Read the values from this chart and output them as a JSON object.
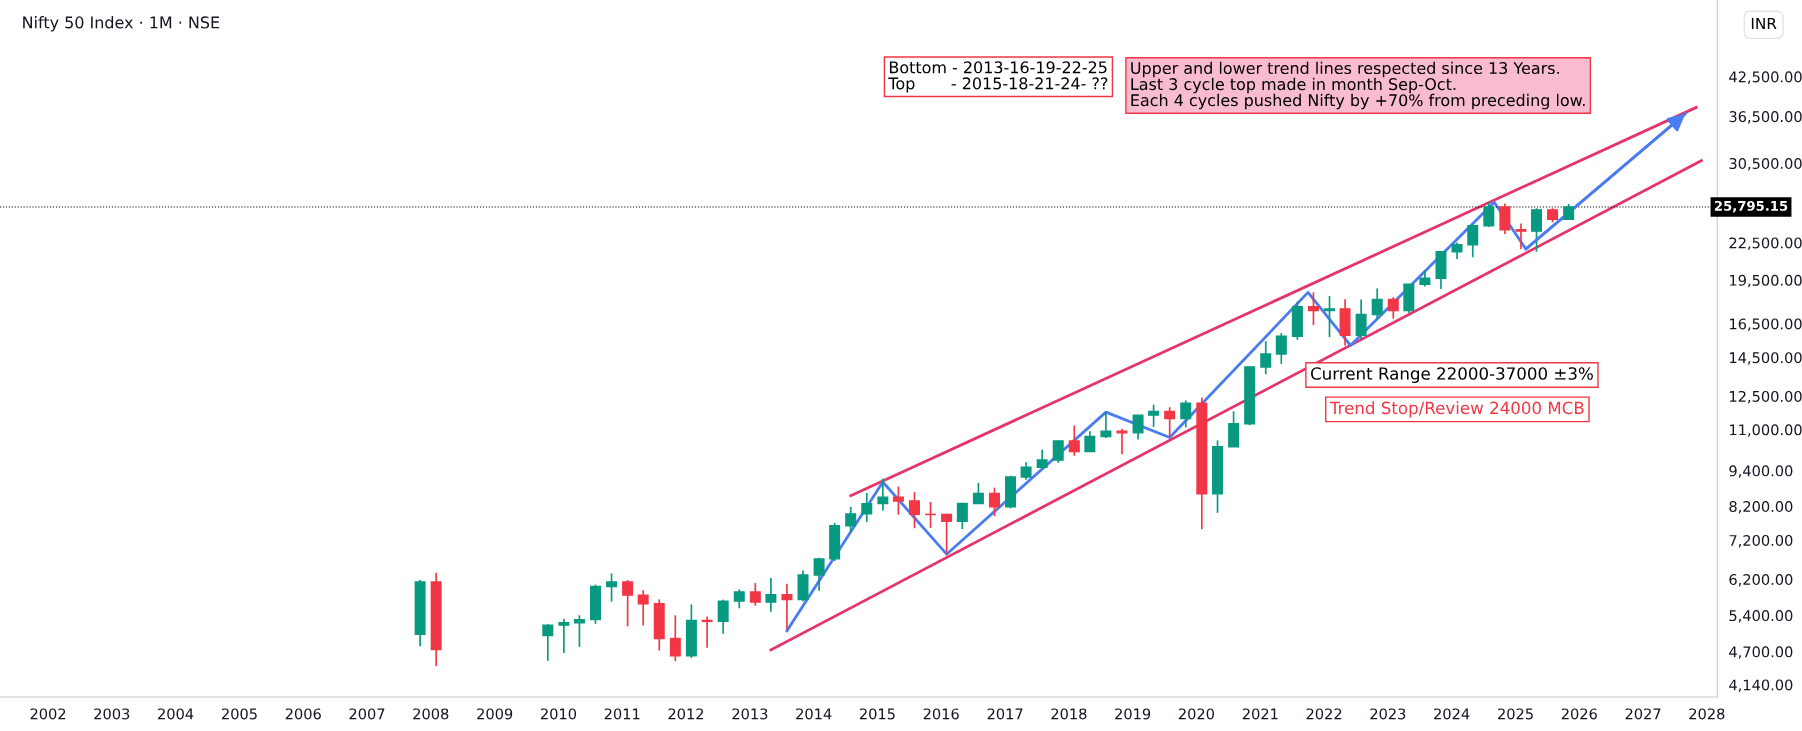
{
  "chart_data": {
    "type": "candlestick",
    "title": "Nifty 50 Index · 1M · NSE",
    "ylabel": "INR",
    "x": [
      "2007-11",
      "2008-02",
      "2009-11",
      "2010-02",
      "2010-05",
      "2010-08",
      "2010-11",
      "2011-02",
      "2011-05",
      "2011-08",
      "2011-11",
      "2012-02",
      "2012-05",
      "2012-08",
      "2012-11",
      "2013-02",
      "2013-05",
      "2013-08",
      "2013-11",
      "2014-02",
      "2014-05",
      "2014-08",
      "2014-11",
      "2015-02",
      "2015-05",
      "2015-08",
      "2015-11",
      "2016-02",
      "2016-05",
      "2016-08",
      "2016-11",
      "2017-02",
      "2017-05",
      "2017-08",
      "2017-11",
      "2018-02",
      "2018-05",
      "2018-08",
      "2018-11",
      "2019-02",
      "2019-05",
      "2019-08",
      "2019-11",
      "2020-02",
      "2020-05",
      "2020-08",
      "2020-11",
      "2021-02",
      "2021-05",
      "2021-08",
      "2021-11",
      "2022-02",
      "2022-05",
      "2022-08",
      "2022-11",
      "2023-02",
      "2023-05",
      "2023-08",
      "2023-11",
      "2024-02",
      "2024-05",
      "2024-08",
      "2024-11",
      "2025-02",
      "2025-05",
      "2025-08",
      "2025-11"
    ],
    "ohlc": [
      [
        5021,
        6185,
        4797,
        6139
      ],
      [
        6136,
        6357,
        4448,
        4735
      ],
      [
        4999,
        5221,
        4538,
        5201
      ],
      [
        5201,
        5330,
        4676,
        5249
      ],
      [
        5249,
        5400,
        4786,
        5313
      ],
      [
        5313,
        6074,
        5226,
        6030
      ],
      [
        6030,
        6339,
        5690,
        6135
      ],
      [
        6135,
        6181,
        5178,
        5834
      ],
      [
        5834,
        5944,
        5196,
        5647
      ],
      [
        5647,
        5740,
        4720,
        4943
      ],
      [
        4943,
        5400,
        4531,
        4624
      ],
      [
        4624,
        5630,
        4588,
        5296
      ],
      [
        5296,
        5379,
        4770,
        5279
      ],
      [
        5279,
        5735,
        5032,
        5703
      ],
      [
        5703,
        5965,
        5548,
        5905
      ],
      [
        5905,
        6112,
        5604,
        5683
      ],
      [
        5683,
        6229,
        5477,
        5842
      ],
      [
        5842,
        6093,
        5119,
        5735
      ],
      [
        5735,
        6415,
        5700,
        6304
      ],
      [
        6304,
        6731,
        5933,
        6704
      ],
      [
        6704,
        7700,
        6650,
        7611
      ],
      [
        7611,
        8180,
        7422,
        7965
      ],
      [
        7965,
        8627,
        7724,
        8283
      ],
      [
        8283,
        9119,
        8065,
        8491
      ],
      [
        8491,
        8845,
        7940,
        8369
      ],
      [
        8369,
        8655,
        7540,
        7949
      ],
      [
        7949,
        8336,
        7551,
        7946
      ],
      [
        7946,
        7972,
        6826,
        7738
      ],
      [
        7738,
        8308,
        7516,
        8288
      ],
      [
        8288,
        8968,
        8287,
        8611
      ],
      [
        8611,
        8806,
        7894,
        8186
      ],
      [
        8186,
        9218,
        8133,
        9174
      ],
      [
        9174,
        9709,
        9075,
        9521
      ],
      [
        9521,
        10179,
        9448,
        9789
      ],
      [
        9789,
        10553,
        9688,
        10531
      ],
      [
        10531,
        11172,
        9952,
        10114
      ],
      [
        10114,
        10930,
        10111,
        10714
      ],
      [
        10714,
        11760,
        10650,
        10930
      ],
      [
        10930,
        11035,
        10005,
        10863
      ],
      [
        10863,
        11630,
        10585,
        11624
      ],
      [
        11624,
        12103,
        11108,
        11789
      ],
      [
        11789,
        11981,
        10670,
        11474
      ],
      [
        11474,
        12294,
        11090,
        12168
      ],
      [
        12168,
        12430,
        7511,
        8598
      ],
      [
        8598,
        10554,
        7999,
        10302
      ],
      [
        10302,
        11794,
        10300,
        11248
      ],
      [
        11248,
        14025,
        11185,
        13982
      ],
      [
        13982,
        15432,
        13597,
        14691
      ],
      [
        14691,
        15916,
        14151,
        15722
      ],
      [
        15722,
        17947,
        15514,
        17618
      ],
      [
        17618,
        18604,
        16410,
        17354
      ],
      [
        17354,
        18351,
        15671,
        17465
      ],
      [
        17465,
        18115,
        15183,
        15780
      ],
      [
        15780,
        18096,
        15511,
        17094
      ],
      [
        17094,
        18888,
        16748,
        18105
      ],
      [
        18105,
        18265,
        16828,
        17360
      ],
      [
        17360,
        19201,
        17204,
        19189
      ],
      [
        19189,
        20222,
        19024,
        19638
      ],
      [
        19638,
        21801,
        18837,
        21731
      ],
      [
        21731,
        22527,
        21137,
        22327
      ],
      [
        22327,
        24174,
        21281,
        24011
      ],
      [
        24011,
        26277,
        23893,
        25811
      ],
      [
        25811,
        26135,
        23263,
        23645
      ],
      [
        23645,
        24227,
        21965,
        23519
      ],
      [
        23519,
        25669,
        21744,
        25517
      ],
      [
        25517,
        25669,
        24337,
        24611
      ],
      [
        24611,
        26104,
        24588,
        25795
      ]
    ],
    "colors": [
      "#089981",
      "#f23645",
      "#089981",
      "#089981",
      "#089981",
      "#089981",
      "#089981",
      "#f23645",
      "#f23645",
      "#f23645",
      "#f23645",
      "#089981",
      "#f23645",
      "#089981",
      "#089981",
      "#f23645",
      "#089981",
      "#f23645",
      "#089981",
      "#089981",
      "#089981",
      "#089981",
      "#089981",
      "#089981",
      "#f23645",
      "#f23645",
      "#f23645",
      "#f23645",
      "#089981",
      "#089981",
      "#f23645",
      "#089981",
      "#089981",
      "#089981",
      "#089981",
      "#f23645",
      "#089981",
      "#089981",
      "#f23645",
      "#089981",
      "#089981",
      "#f23645",
      "#089981",
      "#f23645",
      "#089981",
      "#089981",
      "#089981",
      "#089981",
      "#089981",
      "#089981",
      "#f23645",
      "#089981",
      "#f23645",
      "#089981",
      "#089981",
      "#f23645",
      "#089981",
      "#089981",
      "#089981",
      "#089981",
      "#089981",
      "#089981",
      "#f23645",
      "#f23645",
      "#089981",
      "#f23645",
      "#089981"
    ],
    "series": [
      {
        "type": "line",
        "color": "#e5336b",
        "x": [
          "2014-08",
          "2027-11"
        ],
        "values": [
          8540,
          37770
        ]
      },
      {
        "type": "line",
        "color": "#e5336b",
        "x": [
          "2013-05",
          "2027-12"
        ],
        "values": [
          4730,
          30800
        ]
      },
      {
        "type": "line",
        "color": "#4a7cf0",
        "x": [
          "2013-08",
          "2015-02",
          "2016-02",
          "2018-08",
          "2019-08",
          "2021-10",
          "2022-06",
          "2024-09",
          "2025-03",
          "2027-09"
        ],
        "values": [
          5090,
          9000,
          6826,
          11760,
          10670,
          18604,
          15183,
          26277,
          21965,
          36900
        ]
      }
    ],
    "xlim": [
      "2001-04",
      "2028-03"
    ],
    "xticks": [
      "2002",
      "2003",
      "2004",
      "2005",
      "2006",
      "2007",
      "2008",
      "2009",
      "2010",
      "2011",
      "2012",
      "2013",
      "2014",
      "2015",
      "2016",
      "2017",
      "2018",
      "2019",
      "2020",
      "2021",
      "2022",
      "2023",
      "2024",
      "2025",
      "2026",
      "2027",
      "2028"
    ],
    "log": true,
    "ylim": [
      3950,
      57000
    ],
    "yticks": [
      {
        "value": 4140,
        "label": "4,140.00"
      },
      {
        "value": 4700,
        "label": "4,700.00"
      },
      {
        "value": 5400,
        "label": "5,400.00"
      },
      {
        "value": 6200,
        "label": "6,200.00"
      },
      {
        "value": 7200,
        "label": "7,200.00"
      },
      {
        "value": 8200,
        "label": "8,200.00"
      },
      {
        "value": 9400,
        "label": "9,400.00"
      },
      {
        "value": 11000,
        "label": "11,000.00"
      },
      {
        "value": 12500,
        "label": "12,500.00"
      },
      {
        "value": 14500,
        "label": "14,500.00"
      },
      {
        "value": 16500,
        "label": "16,500.00"
      },
      {
        "value": 19500,
        "label": "19,500.00"
      },
      {
        "value": 22500,
        "label": "22,500.00"
      },
      {
        "value": 30500,
        "label": "30,500.00"
      },
      {
        "value": 36500,
        "label": "36,500.00"
      },
      {
        "value": 42500,
        "label": "42,500.00"
      }
    ],
    "ref_lines": [
      {
        "axis": "y",
        "value": 25795.15,
        "label": "25,795.15",
        "color": "#000000",
        "line_style": "dotted"
      }
    ],
    "grid": false,
    "annotations": [
      "Bottom - 2013-16-19-22-25\nTop       - 2015-18-21-24- ??",
      "Upper and lower trend lines respected since 13 Years.\nLast 3 cycle top made in month Sep-Oct.\nEach 4 cycles pushed Nifty by +70% from preceding low.",
      "Current Range 22000-37000 ±3%",
      "Trend Stop/Review 24000 MCB"
    ]
  }
}
